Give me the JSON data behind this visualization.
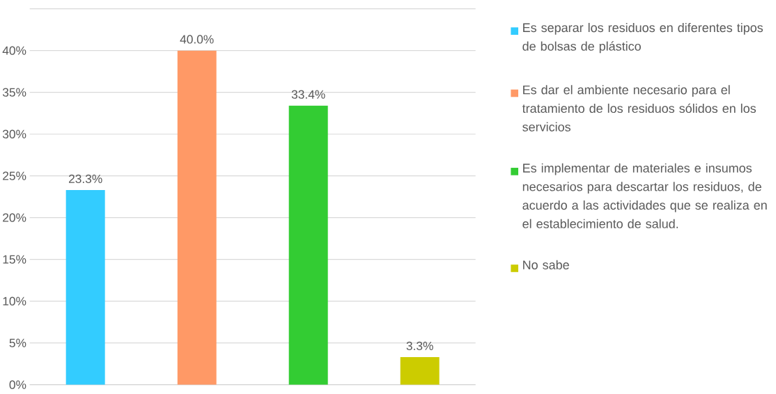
{
  "chart_data": {
    "type": "bar",
    "categories": [
      null,
      null,
      null,
      null
    ],
    "series": [
      {
        "name": "Es separar los residuos en diferentes tipos de bolsas de plástico",
        "color": "#33ccff",
        "values": [
          23.3,
          null,
          null,
          null
        ],
        "value_labels": [
          "23.3%",
          null,
          null,
          null
        ]
      },
      {
        "name": "Es dar el ambiente necesario para el tratamiento de los residuos sólidos en los servicios",
        "color": "#ff9966",
        "values": [
          null,
          40.0,
          null,
          null
        ],
        "value_labels": [
          null,
          "40.0%",
          null,
          null
        ]
      },
      {
        "name": "Es implementar de materiales e insumos necesarios para descartar los residuos, de acuerdo a las actividades que se realiza en el establecimiento de salud.",
        "color": "#33cc33",
        "values": [
          null,
          null,
          33.4,
          null
        ],
        "value_labels": [
          null,
          null,
          "33.4%",
          null
        ]
      },
      {
        "name": "No sabe",
        "color": "#cccc00",
        "values": [
          null,
          null,
          null,
          3.3
        ],
        "value_labels": [
          null,
          null,
          null,
          "3.3%"
        ]
      }
    ],
    "ylim": [
      0,
      45
    ],
    "yticks": [
      {
        "value": 0,
        "label": "0%"
      },
      {
        "value": 5,
        "label": "5%"
      },
      {
        "value": 10,
        "label": "10%"
      },
      {
        "value": 15,
        "label": "15%"
      },
      {
        "value": 20,
        "label": "20%"
      },
      {
        "value": 25,
        "label": "25%"
      },
      {
        "value": 30,
        "label": "30%"
      },
      {
        "value": 35,
        "label": "35%"
      },
      {
        "value": 40,
        "label": "40%"
      },
      {
        "value": 45,
        "label": null
      }
    ],
    "grid": "y",
    "legend": "right"
  }
}
